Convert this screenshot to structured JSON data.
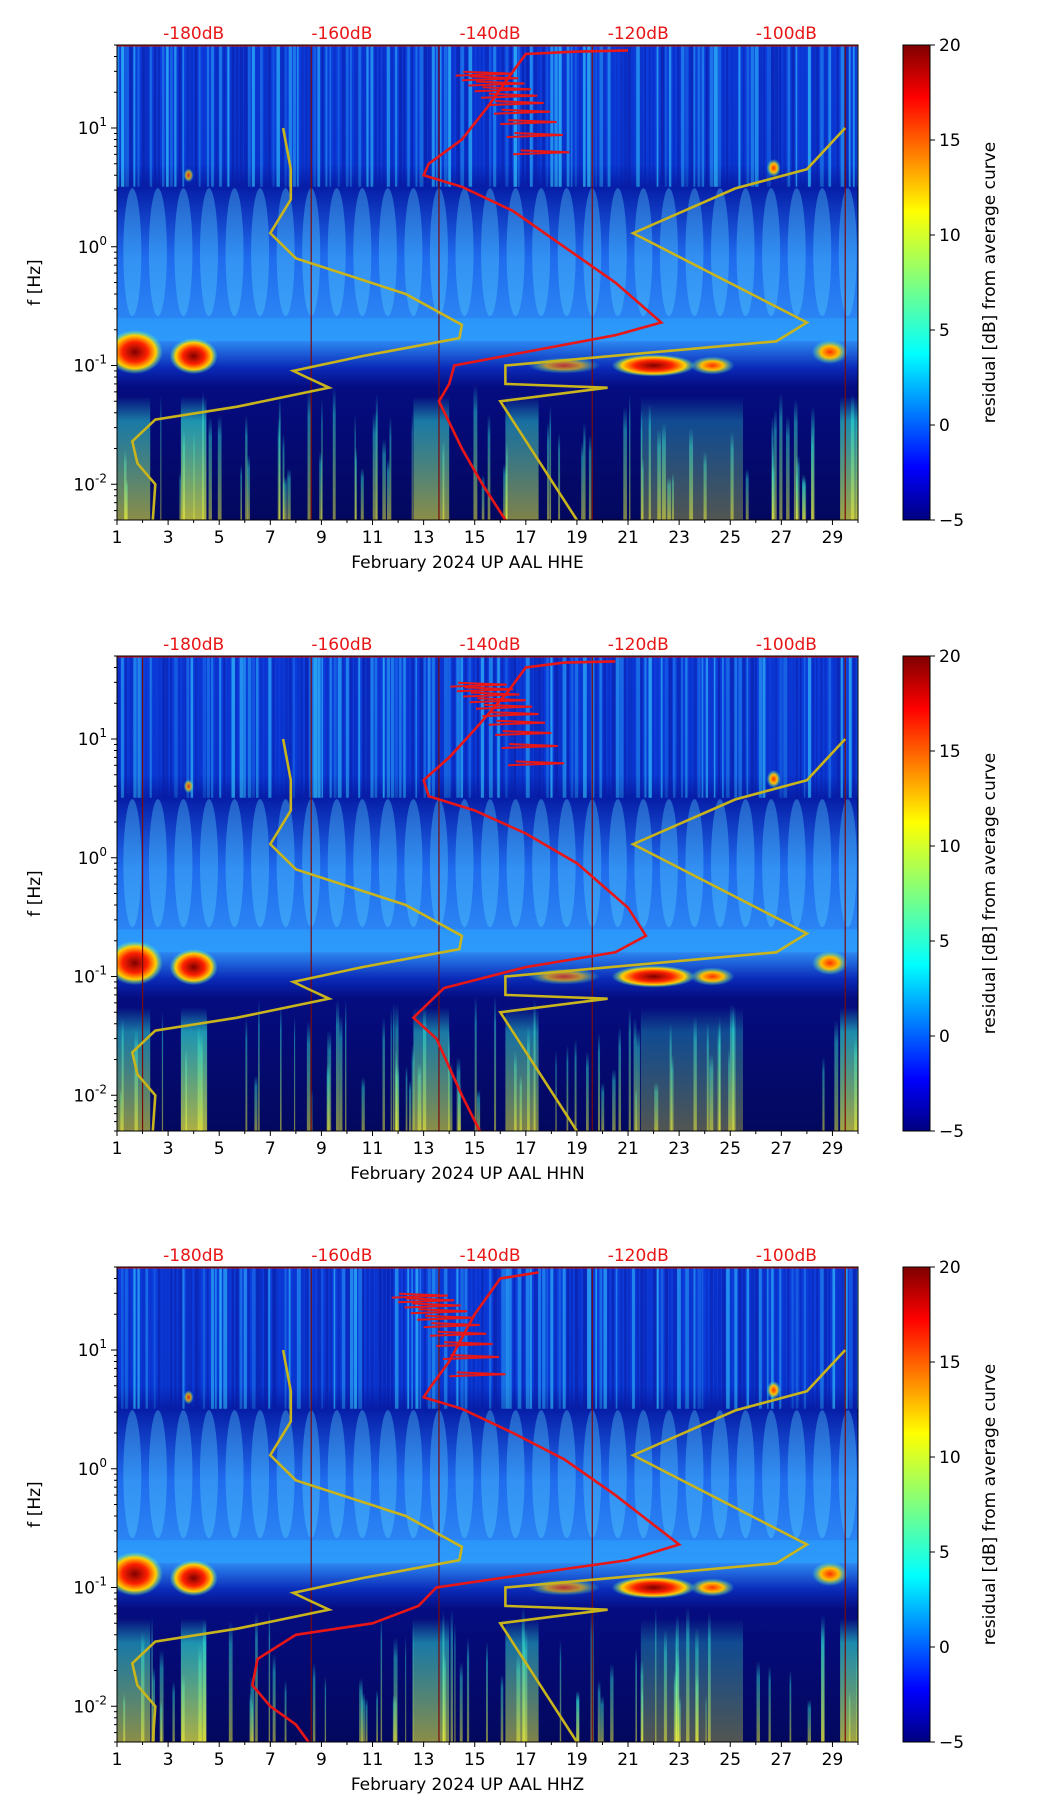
{
  "chart_data": [
    {
      "type": "heatmap",
      "component": "HHE",
      "xlabel": "February 2024 UP AAL  HHE",
      "ylabel": "f [Hz]",
      "x_ticks": [
        "1",
        "3",
        "5",
        "7",
        "9",
        "11",
        "13",
        "15",
        "17",
        "19",
        "21",
        "23",
        "25",
        "27",
        "29"
      ],
      "x_range": [
        1,
        30
      ],
      "y_range_hz": [
        0.005,
        50
      ],
      "y_ticks": [
        {
          "exp": "-2",
          "value": 0.01
        },
        {
          "exp": "-1",
          "value": 0.1
        },
        {
          "exp": "0",
          "value": 1
        },
        {
          "exp": "1",
          "value": 10
        }
      ],
      "top_axis_labels": [
        "-180dB",
        "-160dB",
        "-140dB",
        "-120dB",
        "-100dB"
      ],
      "top_axis_day_positions": [
        4,
        9.8,
        15.6,
        21.4,
        27.2
      ],
      "colorbar": {
        "label": "residual [dB] from average curve",
        "ticks": [
          "20",
          "15",
          "10",
          "5",
          "0",
          "−5"
        ],
        "range": [
          -5,
          20
        ]
      },
      "noise_model_day": [
        [
          29.5,
          10
        ],
        [
          28.0,
          4.5
        ],
        [
          25.2,
          3.1
        ],
        [
          21.2,
          1.3
        ],
        [
          28.0,
          0.23
        ],
        [
          26.8,
          0.16
        ],
        [
          16.2,
          0.1
        ],
        [
          16.2,
          0.07
        ],
        [
          20.2,
          0.065
        ],
        [
          16.0,
          0.05
        ],
        [
          19.0,
          0.005
        ]
      ],
      "noise_model_day_left": [
        [
          7.5,
          10
        ],
        [
          7.8,
          4.5
        ],
        [
          7.8,
          2.5
        ],
        [
          7.0,
          1.3
        ],
        [
          8.0,
          0.8
        ],
        [
          12.3,
          0.4
        ],
        [
          14.5,
          0.22
        ],
        [
          14.4,
          0.17
        ],
        [
          10.6,
          0.12
        ],
        [
          7.9,
          0.09
        ],
        [
          8.4,
          0.08
        ],
        [
          9.3,
          0.065
        ],
        [
          5.7,
          0.045
        ],
        [
          2.5,
          0.035
        ],
        [
          1.6,
          0.023
        ],
        [
          1.8,
          0.015
        ],
        [
          2.5,
          0.01
        ],
        [
          2.4,
          0.005
        ]
      ],
      "average_curve_day": [
        [
          21,
          45
        ],
        [
          19,
          44
        ],
        [
          17,
          42
        ],
        [
          16.5,
          30
        ],
        [
          15.5,
          15
        ],
        [
          14.5,
          8
        ],
        [
          13.2,
          5
        ],
        [
          13.0,
          4
        ],
        [
          14.5,
          3.2
        ],
        [
          16.5,
          2.0
        ],
        [
          18.5,
          1.0
        ],
        [
          20.5,
          0.5
        ],
        [
          22.3,
          0.23
        ],
        [
          20.5,
          0.18
        ],
        [
          17.0,
          0.13
        ],
        [
          14.2,
          0.1
        ],
        [
          14.0,
          0.07
        ],
        [
          13.6,
          0.05
        ],
        [
          14.5,
          0.02
        ],
        [
          15.3,
          0.01
        ],
        [
          16.2,
          0.005
        ]
      ]
    },
    {
      "type": "heatmap",
      "component": "HHN",
      "xlabel": "February 2024 UP AAL  HHN",
      "ylabel": "f [Hz]",
      "x_ticks": [
        "1",
        "3",
        "5",
        "7",
        "9",
        "11",
        "13",
        "15",
        "17",
        "19",
        "21",
        "23",
        "25",
        "27",
        "29"
      ],
      "x_range": [
        1,
        30
      ],
      "y_range_hz": [
        0.005,
        50
      ],
      "y_ticks": [
        {
          "exp": "-2",
          "value": 0.01
        },
        {
          "exp": "-1",
          "value": 0.1
        },
        {
          "exp": "0",
          "value": 1
        },
        {
          "exp": "1",
          "value": 10
        }
      ],
      "top_axis_labels": [
        "-180dB",
        "-160dB",
        "-140dB",
        "-120dB",
        "-100dB"
      ],
      "top_axis_day_positions": [
        4,
        9.8,
        15.6,
        21.4,
        27.2
      ],
      "colorbar": {
        "label": "residual [dB] from average curve",
        "ticks": [
          "20",
          "15",
          "10",
          "5",
          "0",
          "−5"
        ],
        "range": [
          -5,
          20
        ]
      },
      "noise_model_day": [
        [
          29.5,
          10
        ],
        [
          28.0,
          4.5
        ],
        [
          25.2,
          3.1
        ],
        [
          21.2,
          1.3
        ],
        [
          28.0,
          0.23
        ],
        [
          26.8,
          0.16
        ],
        [
          16.2,
          0.1
        ],
        [
          16.2,
          0.07
        ],
        [
          20.2,
          0.065
        ],
        [
          16.0,
          0.05
        ],
        [
          19.0,
          0.005
        ]
      ],
      "noise_model_day_left": [
        [
          7.5,
          10
        ],
        [
          7.8,
          4.5
        ],
        [
          7.8,
          2.5
        ],
        [
          7.0,
          1.3
        ],
        [
          8.0,
          0.8
        ],
        [
          12.3,
          0.4
        ],
        [
          14.5,
          0.22
        ],
        [
          14.4,
          0.17
        ],
        [
          10.6,
          0.12
        ],
        [
          7.9,
          0.09
        ],
        [
          8.4,
          0.08
        ],
        [
          9.3,
          0.065
        ],
        [
          5.7,
          0.045
        ],
        [
          2.5,
          0.035
        ],
        [
          1.6,
          0.023
        ],
        [
          1.8,
          0.015
        ],
        [
          2.5,
          0.01
        ],
        [
          2.4,
          0.005
        ]
      ],
      "average_curve_day": [
        [
          20.5,
          45
        ],
        [
          18.5,
          44
        ],
        [
          17,
          40
        ],
        [
          16.3,
          25
        ],
        [
          15,
          12
        ],
        [
          14,
          7
        ],
        [
          13,
          4.5
        ],
        [
          13.2,
          3.3
        ],
        [
          15,
          2.5
        ],
        [
          17,
          1.6
        ],
        [
          19,
          0.9
        ],
        [
          21,
          0.38
        ],
        [
          21.7,
          0.22
        ],
        [
          20.5,
          0.16
        ],
        [
          17,
          0.12
        ],
        [
          13.8,
          0.08
        ],
        [
          12.6,
          0.045
        ],
        [
          13.5,
          0.03
        ],
        [
          14.5,
          0.01
        ],
        [
          15.2,
          0.005
        ]
      ]
    },
    {
      "type": "heatmap",
      "component": "HHZ",
      "xlabel": "February 2024 UP AAL  HHZ",
      "ylabel": "f [Hz]",
      "x_ticks": [
        "1",
        "3",
        "5",
        "7",
        "9",
        "11",
        "13",
        "15",
        "17",
        "19",
        "21",
        "23",
        "25",
        "27",
        "29"
      ],
      "x_range": [
        1,
        30
      ],
      "y_range_hz": [
        0.005,
        50
      ],
      "y_ticks": [
        {
          "exp": "-2",
          "value": 0.01
        },
        {
          "exp": "-1",
          "value": 0.1
        },
        {
          "exp": "0",
          "value": 1
        },
        {
          "exp": "1",
          "value": 10
        }
      ],
      "top_axis_labels": [
        "-180dB",
        "-160dB",
        "-140dB",
        "-120dB",
        "-100dB"
      ],
      "top_axis_day_positions": [
        4,
        9.8,
        15.6,
        21.4,
        27.2
      ],
      "colorbar": {
        "label": "residual [dB] from average curve",
        "ticks": [
          "20",
          "15",
          "10",
          "5",
          "0",
          "−5"
        ],
        "range": [
          -5,
          20
        ]
      },
      "noise_model_day": [
        [
          29.5,
          10
        ],
        [
          28.0,
          4.5
        ],
        [
          25.2,
          3.1
        ],
        [
          21.2,
          1.3
        ],
        [
          28.0,
          0.23
        ],
        [
          26.8,
          0.16
        ],
        [
          16.2,
          0.1
        ],
        [
          16.2,
          0.07
        ],
        [
          20.2,
          0.065
        ],
        [
          16.0,
          0.05
        ],
        [
          19.0,
          0.005
        ]
      ],
      "noise_model_day_left": [
        [
          7.5,
          10
        ],
        [
          7.8,
          4.5
        ],
        [
          7.8,
          2.5
        ],
        [
          7.0,
          1.3
        ],
        [
          8.0,
          0.8
        ],
        [
          12.3,
          0.4
        ],
        [
          14.5,
          0.22
        ],
        [
          14.4,
          0.17
        ],
        [
          10.6,
          0.12
        ],
        [
          7.9,
          0.09
        ],
        [
          8.4,
          0.08
        ],
        [
          9.3,
          0.065
        ],
        [
          5.7,
          0.045
        ],
        [
          2.5,
          0.035
        ],
        [
          1.6,
          0.023
        ],
        [
          1.8,
          0.015
        ],
        [
          2.5,
          0.01
        ],
        [
          2.4,
          0.005
        ]
      ],
      "average_curve_day": [
        [
          17.5,
          45
        ],
        [
          16,
          40
        ],
        [
          15,
          20
        ],
        [
          14,
          8
        ],
        [
          13.3,
          5
        ],
        [
          13,
          4
        ],
        [
          14.5,
          3.2
        ],
        [
          16.5,
          2.0
        ],
        [
          18.5,
          1.2
        ],
        [
          20.5,
          0.6
        ],
        [
          23,
          0.23
        ],
        [
          21,
          0.17
        ],
        [
          16,
          0.12
        ],
        [
          13.5,
          0.1
        ],
        [
          12.8,
          0.07
        ],
        [
          11,
          0.05
        ],
        [
          8,
          0.04
        ],
        [
          6.5,
          0.025
        ],
        [
          6.3,
          0.015
        ],
        [
          7,
          0.01
        ],
        [
          8,
          0.007
        ],
        [
          8.5,
          0.005
        ]
      ]
    }
  ]
}
